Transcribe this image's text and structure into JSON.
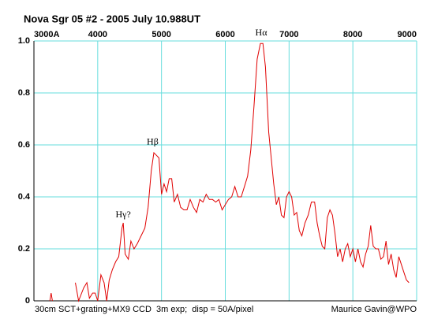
{
  "chart_data": {
    "type": "line",
    "title": "Nova Sgr 05 #2 - 2005 July 10.988UT",
    "footer_left": "30cm SCT+grating+MX9 CCD  3m exp;  disp = 50A/pixel",
    "footer_right": "Maurice Gavin@WPO",
    "xlim": [
      3000,
      9000
    ],
    "xticks": [
      {
        "value": 3000,
        "label": "3000A"
      },
      4000,
      5000,
      6000,
      7000,
      8000,
      9000
    ],
    "ylim": [
      0,
      1
    ],
    "yticks": [
      0,
      0.2,
      0.4,
      0.6,
      0.8,
      {
        "value": 1,
        "label": "1.0"
      }
    ],
    "grid": true,
    "color": "#e00000",
    "annotations": [
      {
        "text": "Hγ?",
        "x": 4400,
        "y": 0.3
      },
      {
        "text": "Hβ",
        "x": 4861,
        "y": 0.58
      },
      {
        "text": "Hα",
        "x": 6563,
        "y": 1.0
      }
    ],
    "x": [
      3250,
      3270,
      3290,
      3500,
      3650,
      3700,
      3780,
      3830,
      3870,
      3920,
      3960,
      4000,
      4050,
      4100,
      4140,
      4180,
      4230,
      4280,
      4330,
      4380,
      4400,
      4430,
      4480,
      4520,
      4570,
      4620,
      4680,
      4740,
      4790,
      4840,
      4880,
      4920,
      4960,
      5000,
      5040,
      5080,
      5120,
      5160,
      5200,
      5250,
      5300,
      5350,
      5400,
      5450,
      5500,
      5550,
      5600,
      5650,
      5700,
      5750,
      5800,
      5850,
      5900,
      5950,
      6000,
      6050,
      6100,
      6150,
      6200,
      6250,
      6300,
      6350,
      6400,
      6450,
      6500,
      6550,
      6590,
      6630,
      6680,
      6720,
      6760,
      6800,
      6840,
      6880,
      6920,
      6960,
      7000,
      7040,
      7080,
      7120,
      7160,
      7200,
      7250,
      7300,
      7350,
      7400,
      7440,
      7480,
      7520,
      7560,
      7600,
      7640,
      7680,
      7720,
      7760,
      7800,
      7840,
      7880,
      7920,
      7960,
      8000,
      8040,
      8080,
      8120,
      8160,
      8200,
      8240,
      8280,
      8320,
      8360,
      8400,
      8440,
      8480,
      8520,
      8560,
      8600,
      8640,
      8680,
      8720,
      8760,
      8800,
      8840,
      8880
    ],
    "values": [
      0.0,
      0.03,
      0.0,
      null,
      0.07,
      0.0,
      0.05,
      0.07,
      0.01,
      0.03,
      0.03,
      0.0,
      0.1,
      0.07,
      0.0,
      0.08,
      0.12,
      0.15,
      0.17,
      0.28,
      0.3,
      0.18,
      0.16,
      0.23,
      0.2,
      0.22,
      0.25,
      0.28,
      0.36,
      0.5,
      0.57,
      0.56,
      0.55,
      0.41,
      0.45,
      0.42,
      0.47,
      0.47,
      0.38,
      0.41,
      0.36,
      0.35,
      0.35,
      0.39,
      0.36,
      0.34,
      0.39,
      0.38,
      0.41,
      0.39,
      0.39,
      0.38,
      0.39,
      0.35,
      0.37,
      0.39,
      0.4,
      0.44,
      0.4,
      0.4,
      0.44,
      0.48,
      0.58,
      0.75,
      0.93,
      0.99,
      0.99,
      0.9,
      0.65,
      0.55,
      0.45,
      0.37,
      0.4,
      0.33,
      0.32,
      0.4,
      0.42,
      0.4,
      0.33,
      0.34,
      0.27,
      0.25,
      0.3,
      0.33,
      0.38,
      0.38,
      0.3,
      0.25,
      0.21,
      0.2,
      0.32,
      0.35,
      0.33,
      0.26,
      0.17,
      0.2,
      0.15,
      0.2,
      0.22,
      0.17,
      0.2,
      0.15,
      0.2,
      0.15,
      0.13,
      0.18,
      0.21,
      0.29,
      0.21,
      0.2,
      0.2,
      0.16,
      0.17,
      0.23,
      0.14,
      0.18,
      0.12,
      0.09,
      0.17,
      0.14,
      0.11,
      0.08,
      0.07
    ]
  }
}
